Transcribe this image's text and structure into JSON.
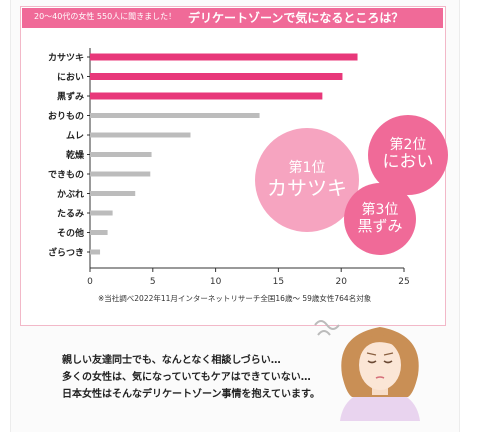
{
  "header": {
    "subtitle": "20〜40代の女性 550人に聞きました！",
    "title": "デリケートゾーンで気になるところは？"
  },
  "chart_data": {
    "type": "bar",
    "orientation": "horizontal",
    "categories": [
      "カサツキ",
      "におい",
      "黒ずみ",
      "おりもの",
      "ムレ",
      "乾燥",
      "できもの",
      "かぶれ",
      "たるみ",
      "その他",
      "ざらつき"
    ],
    "values": [
      21.3,
      20.1,
      18.5,
      13.5,
      8.0,
      4.9,
      4.8,
      3.6,
      1.8,
      1.4,
      0.8
    ],
    "highlight": [
      true,
      true,
      true,
      false,
      false,
      false,
      false,
      false,
      false,
      false,
      false
    ],
    "xlim": [
      0,
      25
    ],
    "xticks": [
      "0",
      "5",
      "10",
      "15",
      "20",
      "25"
    ],
    "grid": false,
    "colors": {
      "highlight": "#e8387a",
      "normal": "#bcbcbc"
    }
  },
  "rankings": [
    {
      "rank": "第1位",
      "name": "カサツキ"
    },
    {
      "rank": "第2位",
      "name": "におい"
    },
    {
      "rank": "第3位",
      "name": "黒ずみ"
    }
  ],
  "footnote": "※当社調べ2022年11月インターネットリサーチ全国16歳〜 59歳女性764名対象",
  "description": [
    "親しい友達同士でも、なんとなく相談しづらい…",
    "多くの女性は、気になっていてもケアはできていない…",
    "日本女性はそんなデリケートゾーン事情を抱えています。"
  ],
  "colors": {
    "accent": "#f06a98",
    "bubble_light": "#f6a4c0",
    "border": "#f2b8c8"
  }
}
